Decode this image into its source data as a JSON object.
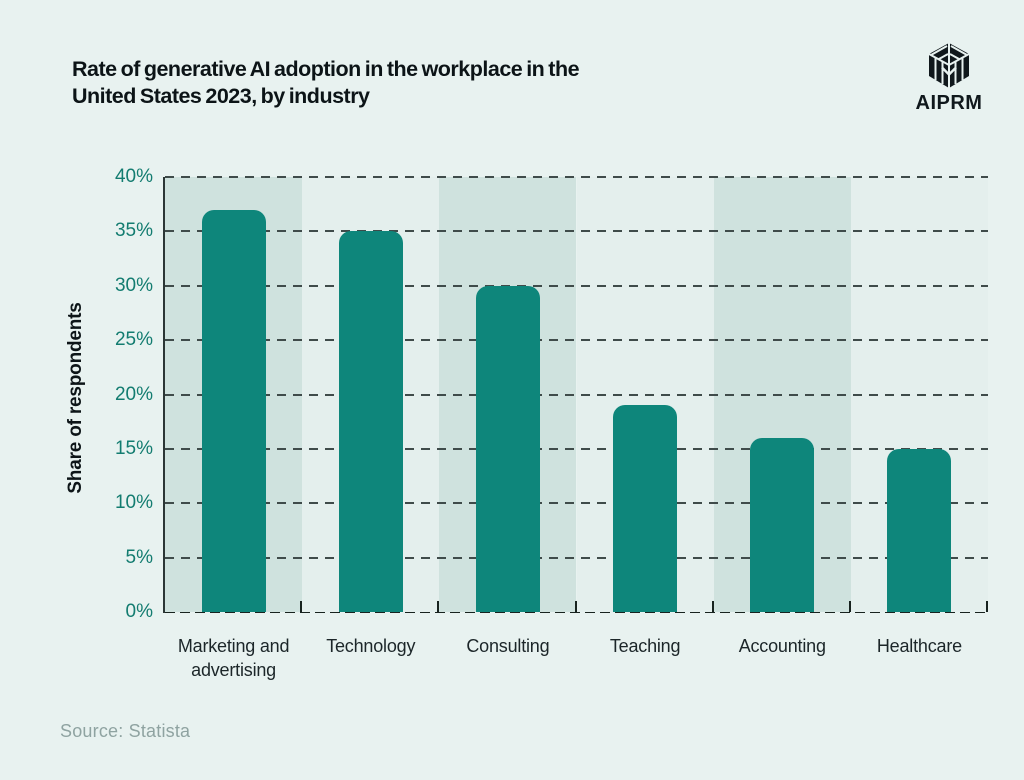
{
  "header": {
    "title_line1": "Rate of generative AI adoption in the workplace in the",
    "title_line2": "United States 2023, by industry",
    "brand": "AIPRM"
  },
  "chart_data": {
    "type": "bar",
    "title": "Rate of generative AI adoption in the workplace in the United States 2023, by industry",
    "categories": [
      "Marketing and advertising",
      "Technology",
      "Consulting",
      "Teaching",
      "Accounting",
      "Healthcare"
    ],
    "values": [
      37,
      35,
      30,
      19,
      16,
      15
    ],
    "xlabel": "",
    "ylabel": "Share of respondents",
    "ylim": [
      0,
      40
    ],
    "ytick_step": 5,
    "ytick_suffix": "%",
    "grid": "horizontal-dashed",
    "legend": "none",
    "bar_color": "#0e867b",
    "band_colors": [
      "#cfe2de",
      "#e4efed"
    ],
    "ytick_color": "#137c70"
  },
  "source": {
    "text": "Source: Statista"
  }
}
